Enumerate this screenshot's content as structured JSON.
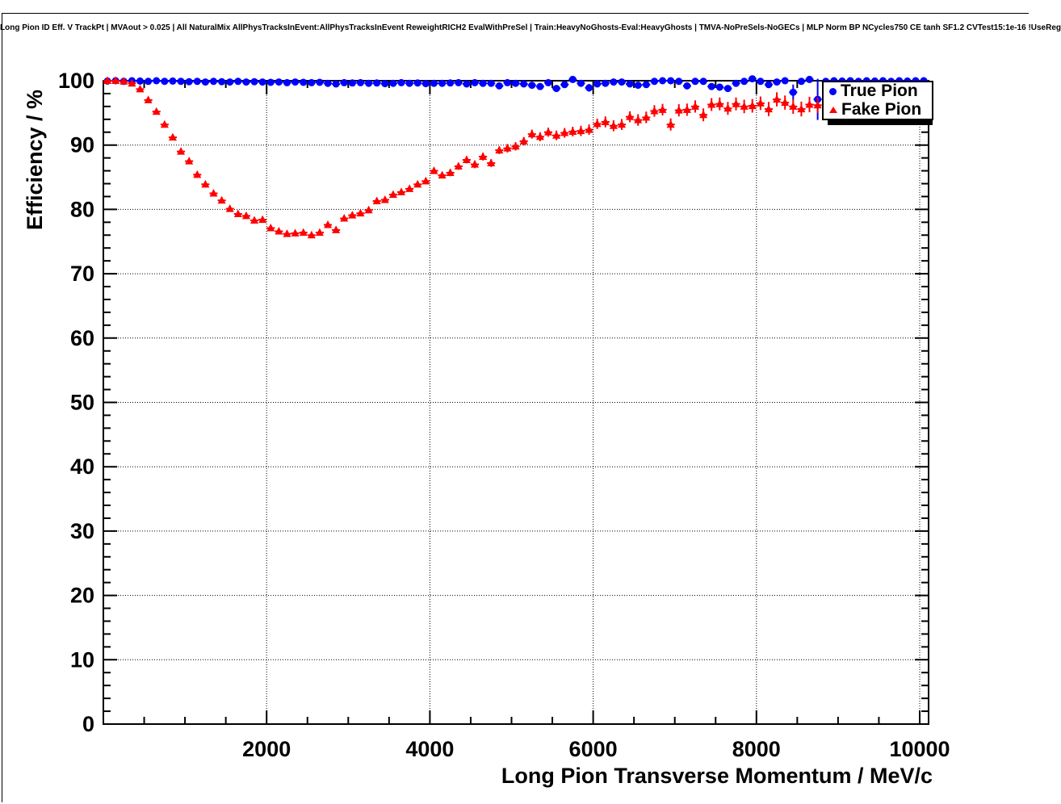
{
  "chart_data": {
    "type": "scatter",
    "title": "Long Pion ID Eff. V TrackPt | MVAout > 0.025 | All NaturalMix AllPhysTracksInEvent:AllPhysTracksInEvent ReweightRICH2 EvalWithPreSel | Train:HeavyNoGhosts-Eval:HeavyGhosts | TMVA-NoPreSels-NoGECs | MLP Norm BP NCycles750 CE tanh SF1.2 CVTest15:1e-16 !UseReg",
    "xlabel": "Long Pion Transverse Momentum / MeV/c",
    "ylabel": "Efficiency / %",
    "xlim": [
      0,
      10000
    ],
    "ylim": [
      0,
      100
    ],
    "x_ticks": [
      2000,
      4000,
      6000,
      8000,
      10000
    ],
    "y_ticks": [
      0,
      10,
      20,
      30,
      40,
      50,
      60,
      70,
      80,
      90,
      100
    ],
    "x_minor_step": 500,
    "y_minor_step": 2,
    "grid": "dotted",
    "legend_position": "top-right",
    "x_bin_half_width": 50,
    "frame_color": "#000000",
    "series": [
      {
        "name": "True Pion",
        "marker": "circle",
        "color": "#0000ff",
        "x": [
          50,
          150,
          250,
          350,
          450,
          550,
          650,
          750,
          850,
          950,
          1050,
          1150,
          1250,
          1350,
          1450,
          1550,
          1650,
          1750,
          1850,
          1950,
          2050,
          2150,
          2250,
          2350,
          2450,
          2550,
          2650,
          2750,
          2850,
          2950,
          3050,
          3150,
          3250,
          3350,
          3450,
          3550,
          3650,
          3750,
          3850,
          3950,
          4050,
          4150,
          4250,
          4350,
          4450,
          4550,
          4650,
          4750,
          4850,
          4950,
          5050,
          5150,
          5250,
          5350,
          5450,
          5550,
          5650,
          5750,
          5850,
          5950,
          6050,
          6150,
          6250,
          6350,
          6450,
          6550,
          6650,
          6750,
          6850,
          6950,
          7050,
          7150,
          7250,
          7350,
          7450,
          7550,
          7650,
          7750,
          7850,
          7950,
          8050,
          8150,
          8250,
          8350,
          8450,
          8550,
          8650,
          8750,
          8850,
          8950,
          9050,
          9150,
          9250,
          9350,
          9450,
          9550,
          9650,
          9750,
          9850,
          9950,
          10050
        ],
        "y": [
          99.95,
          100.0,
          99.9,
          100.0,
          99.95,
          99.9,
          100.0,
          99.9,
          99.95,
          99.9,
          99.85,
          99.9,
          99.8,
          99.9,
          99.85,
          99.8,
          99.9,
          99.8,
          99.85,
          99.8,
          99.75,
          99.8,
          99.7,
          99.8,
          99.75,
          99.7,
          99.75,
          99.6,
          99.5,
          99.7,
          99.65,
          99.7,
          99.6,
          99.65,
          99.55,
          99.6,
          99.7,
          99.6,
          99.65,
          99.55,
          99.6,
          99.6,
          99.65,
          99.7,
          99.5,
          99.7,
          99.6,
          99.6,
          99.2,
          99.7,
          99.6,
          99.5,
          99.3,
          99.1,
          99.7,
          98.8,
          99.4,
          100.2,
          99.6,
          98.9,
          99.5,
          99.6,
          99.8,
          99.8,
          99.5,
          99.3,
          99.4,
          99.9,
          100.0,
          100.0,
          99.9,
          99.2,
          99.9,
          99.9,
          99.1,
          99.0,
          98.8,
          99.6,
          99.9,
          100.3,
          99.9,
          99.4,
          99.8,
          100.0,
          98.2,
          99.9,
          100.2,
          97.1,
          99.9,
          100.0,
          99.95,
          100.0,
          99.9,
          100.0,
          99.95,
          100.0,
          99.9,
          100.0,
          99.95,
          100.0,
          100.0
        ],
        "yerr": [
          0.05,
          0.05,
          0.05,
          0.05,
          0.05,
          0.08,
          0.08,
          0.08,
          0.08,
          0.08,
          0.1,
          0.1,
          0.1,
          0.1,
          0.1,
          0.1,
          0.1,
          0.1,
          0.1,
          0.1,
          0.1,
          0.1,
          0.1,
          0.1,
          0.1,
          0.12,
          0.12,
          0.12,
          0.12,
          0.12,
          0.12,
          0.12,
          0.15,
          0.15,
          0.15,
          0.15,
          0.15,
          0.15,
          0.15,
          0.15,
          0.15,
          0.15,
          0.18,
          0.18,
          0.18,
          0.18,
          0.18,
          0.18,
          0.3,
          0.2,
          0.2,
          0.2,
          0.25,
          0.3,
          0.2,
          0.5,
          0.25,
          0.2,
          0.25,
          0.6,
          0.25,
          0.25,
          0.2,
          0.2,
          0.25,
          0.3,
          0.3,
          0.2,
          0.2,
          0.2,
          0.25,
          0.3,
          0.25,
          0.25,
          0.3,
          0.35,
          0.4,
          0.3,
          0.25,
          0.2,
          0.25,
          0.3,
          0.3,
          0.25,
          1.2,
          0.3,
          0.25,
          3.2,
          0.3,
          0.25,
          0.2,
          0.2,
          0.2,
          0.2,
          0.2,
          0.2,
          0.2,
          0.2,
          0.2,
          0.2,
          0.2
        ]
      },
      {
        "name": "Fake Pion",
        "marker": "triangle",
        "color": "#ff0000",
        "x": [
          50,
          150,
          250,
          350,
          450,
          550,
          650,
          750,
          850,
          950,
          1050,
          1150,
          1250,
          1350,
          1450,
          1550,
          1650,
          1750,
          1850,
          1950,
          2050,
          2150,
          2250,
          2350,
          2450,
          2550,
          2650,
          2750,
          2850,
          2950,
          3050,
          3150,
          3250,
          3350,
          3450,
          3550,
          3650,
          3750,
          3850,
          3950,
          4050,
          4150,
          4250,
          4350,
          4450,
          4550,
          4650,
          4750,
          4850,
          4950,
          5050,
          5150,
          5250,
          5350,
          5450,
          5550,
          5650,
          5750,
          5850,
          5950,
          6050,
          6150,
          6250,
          6350,
          6450,
          6550,
          6650,
          6750,
          6850,
          6950,
          7050,
          7150,
          7250,
          7350,
          7450,
          7550,
          7650,
          7750,
          7850,
          7950,
          8050,
          8150,
          8250,
          8350,
          8450,
          8550,
          8650,
          8750
        ],
        "y": [
          100.0,
          100.0,
          99.9,
          99.6,
          98.7,
          97.0,
          95.2,
          93.2,
          91.2,
          89.0,
          87.5,
          85.4,
          83.9,
          82.5,
          81.4,
          80.1,
          79.3,
          79.0,
          78.3,
          78.4,
          77.1,
          76.6,
          76.2,
          76.3,
          76.4,
          76.0,
          76.4,
          77.6,
          76.8,
          78.6,
          79.1,
          79.4,
          79.9,
          81.3,
          81.5,
          82.3,
          82.7,
          83.2,
          83.9,
          84.4,
          86.0,
          85.3,
          85.7,
          86.7,
          87.7,
          87.0,
          88.2,
          87.2,
          89.2,
          89.5,
          89.8,
          90.6,
          91.7,
          91.3,
          92.0,
          91.5,
          91.9,
          92.1,
          92.2,
          92.4,
          93.3,
          93.6,
          93.0,
          93.2,
          94.4,
          93.9,
          94.3,
          95.3,
          95.5,
          93.2,
          95.4,
          95.5,
          96.0,
          94.7,
          96.3,
          96.4,
          95.7,
          96.4,
          96.0,
          96.1,
          96.5,
          95.6,
          97.1,
          96.6,
          96.0,
          95.6,
          96.3,
          96.2
        ],
        "yerr": [
          0.05,
          0.08,
          0.1,
          0.12,
          0.15,
          0.18,
          0.2,
          0.2,
          0.22,
          0.25,
          0.25,
          0.25,
          0.25,
          0.25,
          0.25,
          0.25,
          0.25,
          0.25,
          0.25,
          0.25,
          0.25,
          0.25,
          0.25,
          0.3,
          0.3,
          0.3,
          0.3,
          0.3,
          0.3,
          0.35,
          0.35,
          0.35,
          0.4,
          0.4,
          0.4,
          0.4,
          0.45,
          0.45,
          0.45,
          0.5,
          0.5,
          0.5,
          0.55,
          0.55,
          0.55,
          0.6,
          0.6,
          0.6,
          0.6,
          0.65,
          0.65,
          0.65,
          0.7,
          0.7,
          0.7,
          0.75,
          0.75,
          0.75,
          0.8,
          0.8,
          0.8,
          0.85,
          0.85,
          0.85,
          0.85,
          0.9,
          0.9,
          0.9,
          0.9,
          0.95,
          0.95,
          0.95,
          0.95,
          1.0,
          1.0,
          1.0,
          1.0,
          1.0,
          1.05,
          1.05,
          1.05,
          1.1,
          1.1,
          1.1,
          1.15,
          1.15,
          1.2,
          1.2
        ]
      }
    ]
  }
}
